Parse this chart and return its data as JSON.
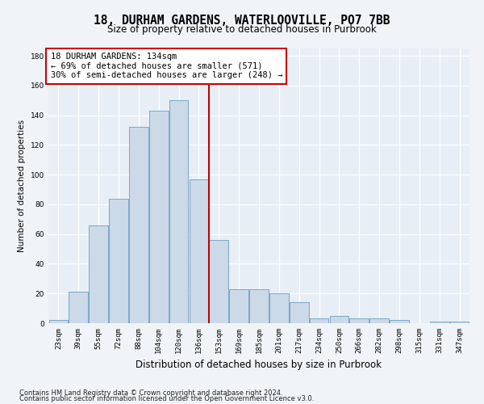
{
  "title": "18, DURHAM GARDENS, WATERLOOVILLE, PO7 7BB",
  "subtitle": "Size of property relative to detached houses in Purbrook",
  "xlabel": "Distribution of detached houses by size in Purbrook",
  "ylabel": "Number of detached properties",
  "footnote1": "Contains HM Land Registry data © Crown copyright and database right 2024.",
  "footnote2": "Contains public sector information licensed under the Open Government Licence v3.0.",
  "categories": [
    "23sqm",
    "39sqm",
    "55sqm",
    "72sqm",
    "88sqm",
    "104sqm",
    "120sqm",
    "136sqm",
    "153sqm",
    "169sqm",
    "185sqm",
    "201sqm",
    "217sqm",
    "234sqm",
    "250sqm",
    "266sqm",
    "282sqm",
    "298sqm",
    "315sqm",
    "331sqm",
    "347sqm"
  ],
  "values": [
    2,
    21,
    66,
    84,
    132,
    143,
    150,
    97,
    56,
    23,
    23,
    20,
    14,
    3,
    5,
    3,
    3,
    2,
    0,
    1,
    1
  ],
  "bar_color": "#ccd9e8",
  "bar_edge_color": "#6a9fc0",
  "vline_index": 7,
  "vline_color": "#bb0000",
  "annotation_text": "18 DURHAM GARDENS: 134sqm\n← 69% of detached houses are smaller (571)\n30% of semi-detached houses are larger (248) →",
  "annotation_box_color": "#cc0000",
  "ylim": [
    0,
    185
  ],
  "yticks": [
    0,
    20,
    40,
    60,
    80,
    100,
    120,
    140,
    160,
    180
  ],
  "bg_color": "#e8eef5",
  "grid_color": "#ffffff",
  "fig_bg_color": "#f0f4f8",
  "title_fontsize": 10.5,
  "subtitle_fontsize": 8.5,
  "xlabel_fontsize": 8.5,
  "ylabel_fontsize": 7.5,
  "tick_fontsize": 6.5,
  "annot_fontsize": 7.5,
  "footnote_fontsize": 6
}
